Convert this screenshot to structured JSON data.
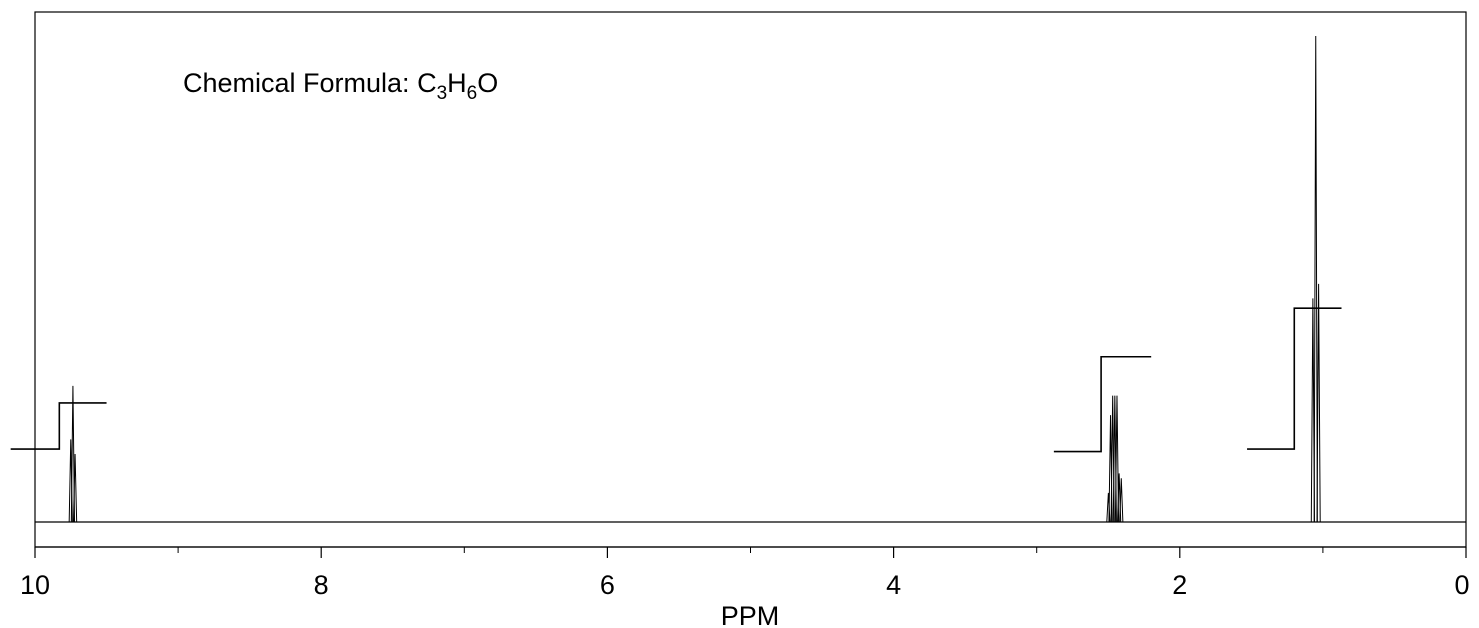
{
  "chart_data": {
    "type": "line",
    "title": "",
    "xlabel": "PPM",
    "ylabel": "",
    "xlim": [
      10,
      0
    ],
    "x_reversed": true,
    "major_ticks": [
      10,
      8,
      6,
      4,
      2,
      0
    ],
    "tick_labels": [
      "10",
      "8",
      "6",
      "4",
      "2",
      "0"
    ],
    "minor_ticks": [
      9,
      7,
      5,
      3,
      1
    ],
    "grid": false,
    "annotation": {
      "prefix": "Chemical Formula: ",
      "formula": [
        {
          "text": "C",
          "sub": false
        },
        {
          "text": "3",
          "sub": true
        },
        {
          "text": "H",
          "sub": false
        },
        {
          "text": "6",
          "sub": true
        },
        {
          "text": "O",
          "sub": false
        }
      ]
    },
    "series": [
      {
        "kind": "spectrum",
        "peaks": [
          {
            "ppm": 9.75,
            "height": 0.17
          },
          {
            "ppm": 9.735,
            "height": 0.28
          },
          {
            "ppm": 9.72,
            "height": 0.14
          },
          {
            "ppm": 2.499,
            "height": 0.06
          },
          {
            "ppm": 2.484,
            "height": 0.22
          },
          {
            "ppm": 2.469,
            "height": 0.26
          },
          {
            "ppm": 2.454,
            "height": 0.26
          },
          {
            "ppm": 2.439,
            "height": 0.26
          },
          {
            "ppm": 2.424,
            "height": 0.1
          },
          {
            "ppm": 2.409,
            "height": 0.09
          },
          {
            "ppm": 1.07,
            "height": 0.46
          },
          {
            "ppm": 1.05,
            "height": 1.0
          },
          {
            "ppm": 1.03,
            "height": 0.49
          }
        ]
      },
      {
        "kind": "integral",
        "segments": [
          {
            "from": 10.17,
            "step": 9.83,
            "to": 9.5,
            "low": 0.15,
            "high": 0.245
          },
          {
            "from": 2.88,
            "step": 2.55,
            "to": 2.2,
            "low": 0.145,
            "high": 0.34
          },
          {
            "from": 1.53,
            "step": 1.2,
            "to": 0.87,
            "low": 0.15,
            "high": 0.44
          }
        ]
      }
    ]
  }
}
